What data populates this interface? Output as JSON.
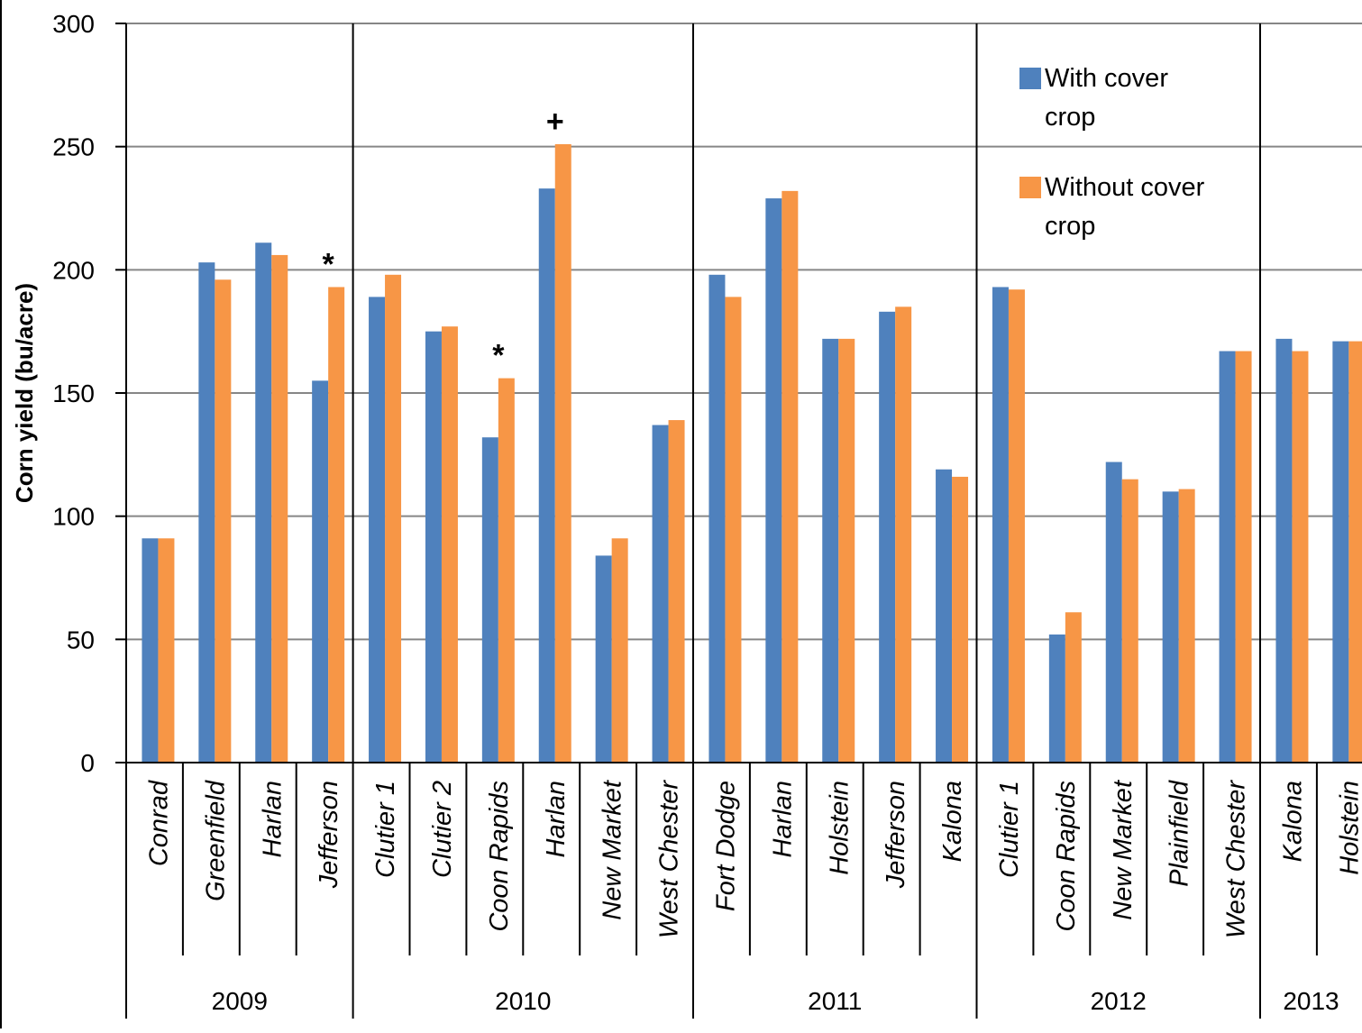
{
  "chart_data": {
    "type": "bar",
    "ylabel": "Corn yield (bu/acre)",
    "ylim": [
      0,
      300
    ],
    "yticks": [
      0,
      50,
      100,
      150,
      200,
      250,
      300
    ],
    "grid": true,
    "legend_position": "top-right",
    "series": [
      {
        "name": "With cover crop",
        "color": "#4F81BD"
      },
      {
        "name": "Without cover crop",
        "color": "#F79646"
      }
    ],
    "groups": [
      {
        "year": "2009",
        "sites": [
          {
            "site": "Conrad",
            "values": [
              91,
              91
            ],
            "annotation": ""
          },
          {
            "site": "Greenfield",
            "values": [
              203,
              196
            ],
            "annotation": ""
          },
          {
            "site": "Harlan",
            "values": [
              211,
              206
            ],
            "annotation": ""
          },
          {
            "site": "Jefferson",
            "values": [
              155,
              193
            ],
            "annotation": "*"
          }
        ]
      },
      {
        "year": "2010",
        "sites": [
          {
            "site": "Clutier 1",
            "values": [
              189,
              198
            ],
            "annotation": ""
          },
          {
            "site": "Clutier 2",
            "values": [
              175,
              177
            ],
            "annotation": ""
          },
          {
            "site": "Coon Rapids",
            "values": [
              132,
              156
            ],
            "annotation": "*"
          },
          {
            "site": "Harlan",
            "values": [
              233,
              251
            ],
            "annotation": "+"
          },
          {
            "site": "New Market",
            "values": [
              84,
              91
            ],
            "annotation": ""
          },
          {
            "site": "West Chester",
            "values": [
              137,
              139
            ],
            "annotation": ""
          }
        ]
      },
      {
        "year": "2011",
        "sites": [
          {
            "site": "Fort Dodge",
            "values": [
              198,
              189
            ],
            "annotation": ""
          },
          {
            "site": "Harlan",
            "values": [
              229,
              232
            ],
            "annotation": ""
          },
          {
            "site": "Holstein",
            "values": [
              172,
              172
            ],
            "annotation": ""
          },
          {
            "site": "Jefferson",
            "values": [
              183,
              185
            ],
            "annotation": ""
          },
          {
            "site": "Kalona",
            "values": [
              119,
              116
            ],
            "annotation": ""
          }
        ]
      },
      {
        "year": "2012",
        "sites": [
          {
            "site": "Clutier 1",
            "values": [
              193,
              192
            ],
            "annotation": ""
          },
          {
            "site": "Coon Rapids",
            "values": [
              52,
              61
            ],
            "annotation": ""
          },
          {
            "site": "New Market",
            "values": [
              122,
              115
            ],
            "annotation": ""
          },
          {
            "site": "Plainfield",
            "values": [
              110,
              111
            ],
            "annotation": ""
          },
          {
            "site": "West Chester",
            "values": [
              167,
              167
            ],
            "annotation": ""
          }
        ]
      },
      {
        "year": "2013",
        "sites": [
          {
            "site": "Kalona",
            "values": [
              172,
              167
            ],
            "annotation": ""
          },
          {
            "site": "Holstein",
            "values": [
              171,
              171
            ],
            "annotation": ""
          }
        ]
      }
    ]
  }
}
